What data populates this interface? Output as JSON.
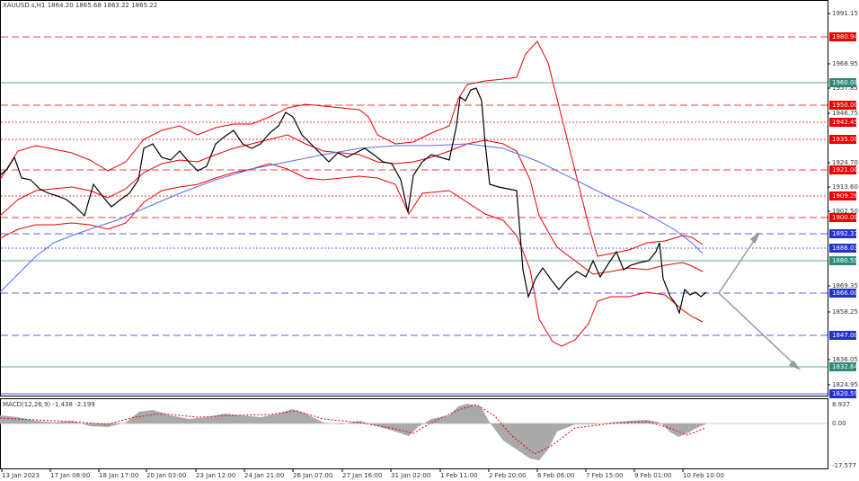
{
  "header": {
    "symbol_line": "XAUUSD.s,H1  1864.20 1865.68 1863.22 1865.22"
  },
  "price_axis": [
    "1991.15",
    "1968.95",
    "1957.85",
    "1946.75",
    "1924.70",
    "1913.60",
    "1902.50",
    "1869.35",
    "1858.25",
    "1836.05",
    "1824.95"
  ],
  "levels": [
    "1980.94",
    "1960.00",
    "1950.00",
    "1942.45",
    "1935.00",
    "1921.00",
    "1909.28",
    "1900.00",
    "1892.37",
    "1886.03",
    "1880.59",
    "1866.00",
    "1847.00",
    "1832.64",
    "1820.59"
  ],
  "time_axis": [
    "13 Jan 2023",
    "17 Jan 08:00",
    "18 Jan 17:00",
    "20 Jan 03:00",
    "23 Jan 12:00",
    "24 Jan 21:00",
    "26 Jan 07:00",
    "27 Jan 16:00",
    "31 Jan 02:00",
    "1 Feb 11:00",
    "2 Feb 20:00",
    "6 Feb 06:00",
    "7 Feb 15:00",
    "9 Feb 01:00",
    "10 Feb 10:00"
  ],
  "macd": {
    "title": "MACD(12,26,9) -1.438 -2.199",
    "axis": [
      "8.937",
      "0.00",
      "-17.577"
    ]
  }
}
